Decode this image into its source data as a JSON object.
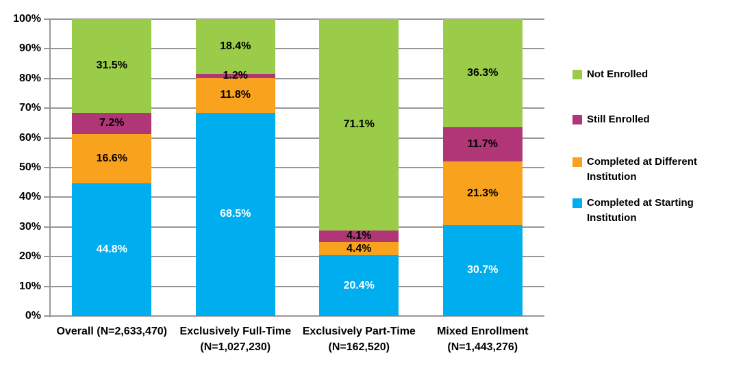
{
  "chart_data": {
    "type": "bar",
    "variant": "100%-stacked-column",
    "title": "",
    "background_color": "#FFFFFF",
    "grid_color": "#969696",
    "text_color": "#000000",
    "categories": [
      "Overall (N=2,633,470)",
      "Exclusively Full-Time (N=1,027,230)",
      "Exclusively Part-Time (N=162,520)",
      "Mixed Enrollment (N=1,443,276)"
    ],
    "category_lines": [
      [
        "Overall (N=2,633,470)",
        ""
      ],
      [
        "Exclusively Full-Time",
        "(N=1,027,230)"
      ],
      [
        "Exclusively Part-Time",
        "(N=162,520)"
      ],
      [
        "Mixed Enrollment",
        "(N=1,443,276)"
      ]
    ],
    "series": [
      {
        "name": "Completed at Starting Institution",
        "color": "#00ADEE",
        "label_color": "#FFFFFF",
        "values": [
          44.8,
          68.5,
          20.4,
          30.7
        ]
      },
      {
        "name": "Completed at Different Institution",
        "color": "#F9A21D",
        "label_color": "#000000",
        "values": [
          16.6,
          11.8,
          4.4,
          21.3
        ]
      },
      {
        "name": "Still Enrolled",
        "color": "#B13677",
        "label_color": "#000000",
        "values": [
          7.2,
          1.2,
          4.1,
          11.7
        ]
      },
      {
        "name": "Not Enrolled",
        "color": "#9ACC49",
        "label_color": "#000000",
        "values": [
          31.5,
          18.4,
          71.1,
          36.3
        ]
      }
    ],
    "stack_order": "bottom-to-top",
    "data_label_suffix": "%",
    "y_axis": {
      "min": 0,
      "max": 100,
      "step": 10,
      "tick_labels": [
        "0%",
        "10%",
        "20%",
        "30%",
        "40%",
        "50%",
        "60%",
        "70%",
        "80%",
        "90%",
        "100%"
      ]
    },
    "legend": {
      "position": "right",
      "items": [
        {
          "label": "Not Enrolled",
          "color": "#9ACC49"
        },
        {
          "label": "Still Enrolled",
          "color": "#B13677"
        },
        {
          "label": "Completed at Different Institution",
          "color": "#F9A21D"
        },
        {
          "label": "Completed at Starting Institution",
          "color": "#00ADEE"
        }
      ]
    }
  }
}
